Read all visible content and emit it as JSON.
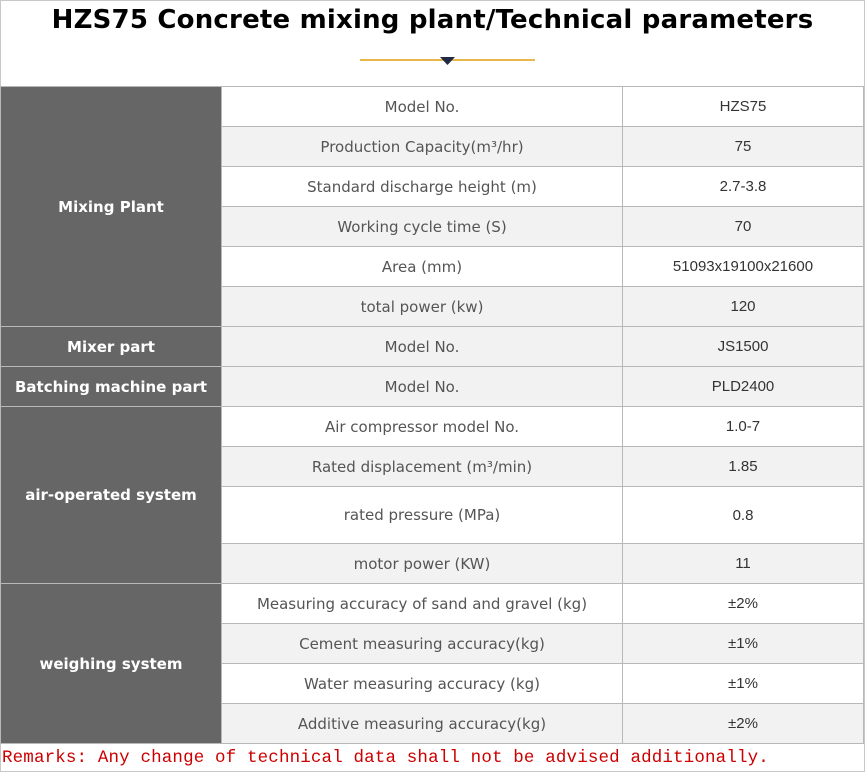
{
  "title": "HZS75 Concrete mixing plant/Technical parameters",
  "colors": {
    "category_bg": "#666666",
    "category_text": "#ffffff",
    "row_alt_bg": "#f2f2f2",
    "remark_text": "#cc0000",
    "deco_gold": "#e8b84a",
    "deco_navy": "#1f2a44"
  },
  "sections": [
    {
      "category": "Mixing Plant",
      "rows": [
        {
          "name": "Model No.",
          "value": "HZS75"
        },
        {
          "name": "Production Capacity(m³/hr)",
          "value": "75"
        },
        {
          "name": "Standard discharge height (m)",
          "value": "2.7-3.8"
        },
        {
          "name": "Working cycle time (S)",
          "value": "70"
        },
        {
          "name": "Area  (mm)",
          "value": "51093x19100x21600"
        },
        {
          "name": "total power   (kw)",
          "value": "120"
        }
      ]
    },
    {
      "category": "Mixer part",
      "rows": [
        {
          "name": "Model No.",
          "value": "JS1500"
        }
      ]
    },
    {
      "category": "Batching machine part",
      "rows": [
        {
          "name": "Model No.",
          "value": "PLD2400"
        }
      ]
    },
    {
      "category": "air-operated system",
      "rows": [
        {
          "name": "Air compressor model No.",
          "value": "1.0-7"
        },
        {
          "name": "Rated displacement  (m³/min)",
          "value": "1.85"
        },
        {
          "name": "rated pressure  (MPa)",
          "value": "0.8"
        },
        {
          "name": "motor power  (KW)",
          "value": "11"
        }
      ]
    },
    {
      "category": "weighing system",
      "rows": [
        {
          "name": "Measuring accuracy of sand and gravel (kg)",
          "value": "±2%"
        },
        {
          "name": "Cement measuring accuracy(kg)",
          "value": "±1%"
        },
        {
          "name": "Water measuring accuracy (kg)",
          "value": "±1%"
        },
        {
          "name": "Additive measuring accuracy(kg)",
          "value": "±2%"
        }
      ]
    }
  ],
  "remarks": "Remarks: Any change of technical data shall not be advised additionally."
}
